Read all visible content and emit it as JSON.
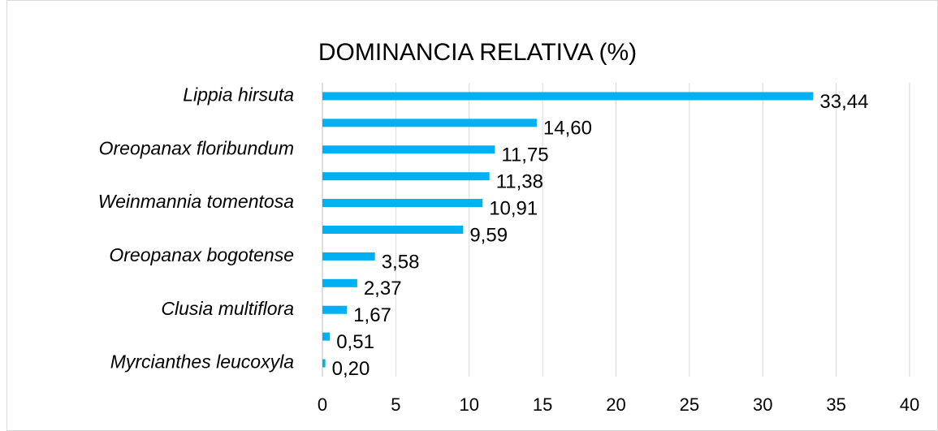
{
  "chart_data": {
    "type": "bar",
    "orientation": "horizontal",
    "title": "DOMINANCIA RELATIVA (%)",
    "categories": [
      "Lippia hirsuta",
      null,
      "Oreopanax floribundum",
      null,
      "Weinmannia tomentosa",
      null,
      "Oreopanax bogotense",
      null,
      "Clusia multiflora",
      null,
      "Myrcianthes leucoxyla"
    ],
    "values": [
      33.44,
      14.6,
      11.75,
      11.38,
      10.91,
      9.59,
      3.58,
      2.37,
      1.67,
      0.51,
      0.2
    ],
    "value_labels": [
      "33,44",
      "14,60",
      "11,75",
      "11,38",
      "10,91",
      "9,59",
      "3,58",
      "2,37",
      "1,67",
      "0,51",
      "0,20"
    ],
    "color": "#00b0f0",
    "xlim": [
      0,
      40
    ],
    "xticks": [
      0,
      5,
      10,
      15,
      20,
      25,
      30,
      35,
      40
    ],
    "grid": true
  }
}
